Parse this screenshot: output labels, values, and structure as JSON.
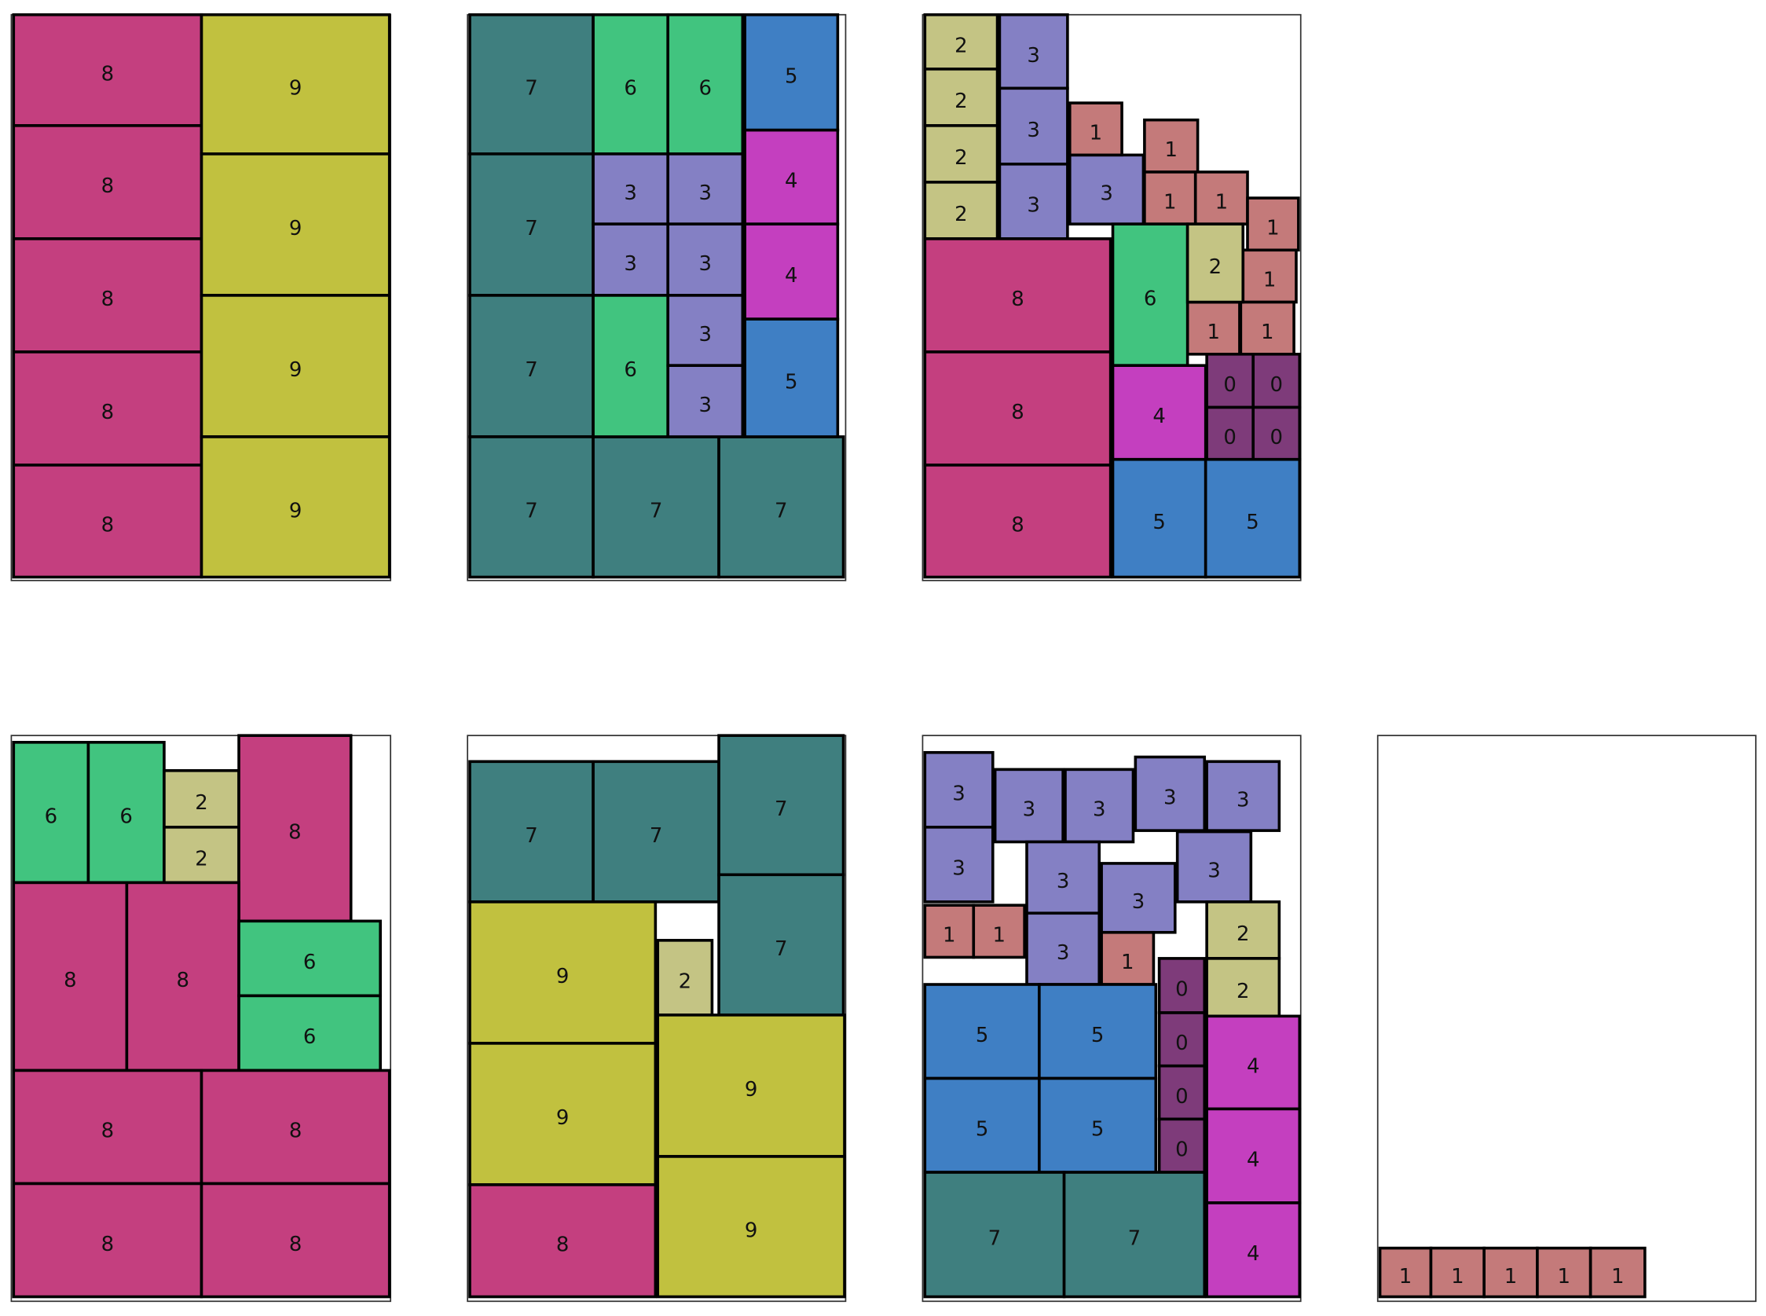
{
  "panels": [
    {
      "items": [
        "8",
        "8",
        "8",
        "8",
        "8",
        "9",
        "9",
        "9",
        "9"
      ]
    },
    {
      "items": [
        "7",
        "7",
        "7",
        "7",
        "7",
        "7",
        "6",
        "6",
        "5",
        "3",
        "3",
        "3",
        "3",
        "4",
        "4",
        "6",
        "3",
        "3",
        "5"
      ]
    },
    {
      "items": [
        "2",
        "2",
        "2",
        "2",
        "3",
        "3",
        "3",
        "3",
        "1",
        "1",
        "1",
        "1",
        "1",
        "1",
        "1",
        "1",
        "8",
        "8",
        "8",
        "6",
        "2",
        "0",
        "0",
        "0",
        "0",
        "4",
        "5",
        "5"
      ]
    },
    {
      "items": [
        "6",
        "6",
        "2",
        "2",
        "8",
        "8",
        "8",
        "6",
        "6",
        "8",
        "8",
        "8",
        "8"
      ]
    },
    {
      "items": [
        "7",
        "7",
        "7",
        "7",
        "9",
        "9",
        "2",
        "8",
        "9",
        "9"
      ]
    },
    {
      "items": [
        "3",
        "3",
        "3",
        "3",
        "3",
        "3",
        "3",
        "3",
        "3",
        "3",
        "1",
        "1",
        "1",
        "0",
        "0",
        "0",
        "0",
        "2",
        "2",
        "5",
        "5",
        "5",
        "5",
        "4",
        "4",
        "4",
        "7",
        "7"
      ]
    },
    {
      "items": [
        "1",
        "1",
        "1",
        "1",
        "1"
      ]
    }
  ]
}
